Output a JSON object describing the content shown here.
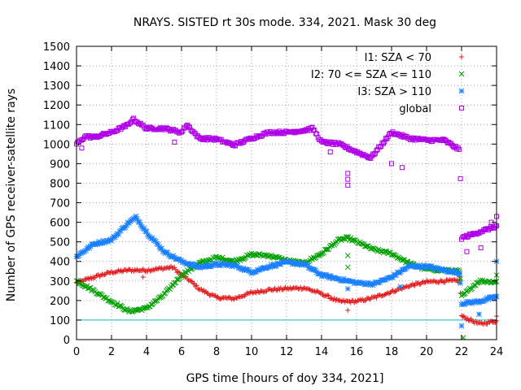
{
  "chart_data": {
    "type": "scatter",
    "title": "NRAYS. SISTED rt 30s mode. 334, 2021. Mask 30 deg",
    "xlabel": "GPS time [hours of doy 334, 2021]",
    "ylabel": "Number of GPS receiver-satellite rays",
    "xlim": [
      0,
      24
    ],
    "ylim": [
      0,
      1500
    ],
    "x_ticks": [
      "0",
      "2",
      "4",
      "6",
      "8",
      "10",
      "12",
      "14",
      "16",
      "18",
      "20",
      "22",
      "24"
    ],
    "y_ticks": [
      "0",
      "100",
      "200",
      "300",
      "400",
      "500",
      "600",
      "700",
      "800",
      "900",
      "1000",
      "1100",
      "1200",
      "1300",
      "1400",
      "1500"
    ],
    "grid": true,
    "legend_position": "top-right",
    "reference_line": {
      "y": 100,
      "color": "#00c8c8"
    },
    "series": [
      {
        "name": "I1: SZA < 70",
        "marker": "+",
        "color": "#e41a1c",
        "x": [
          0,
          1,
          2,
          3,
          4,
          5,
          5.5,
          6,
          6.5,
          7,
          8,
          9,
          10,
          11,
          12,
          13,
          14,
          15,
          16,
          17,
          18,
          19,
          20,
          21,
          21.9,
          22,
          23,
          24
        ],
        "y": [
          290,
          320,
          345,
          355,
          355,
          365,
          370,
          330,
          300,
          260,
          215,
          210,
          240,
          255,
          260,
          265,
          235,
          195,
          195,
          215,
          245,
          275,
          295,
          300,
          300,
          120,
          80,
          95
        ]
      },
      {
        "name": "I2: 70 <= SZA <= 110",
        "marker": "x",
        "color": "#00a000",
        "x": [
          0,
          1,
          2,
          3,
          4,
          5,
          6,
          7,
          8,
          9,
          10,
          11,
          12,
          13,
          14,
          15,
          15.5,
          16,
          17,
          18,
          19,
          20,
          21,
          21.9,
          22,
          23,
          24
        ],
        "y": [
          300,
          250,
          195,
          145,
          160,
          230,
          330,
          390,
          420,
          400,
          435,
          430,
          405,
          390,
          440,
          510,
          520,
          500,
          460,
          440,
          390,
          360,
          355,
          350,
          220,
          300,
          295
        ]
      },
      {
        "name": "I3: SZA > 110",
        "marker": "*",
        "color": "#1a80ff",
        "x": [
          0,
          1,
          2,
          3,
          3.4,
          4,
          5,
          6,
          7,
          8,
          9,
          10,
          11,
          12,
          13,
          14,
          15,
          16,
          17,
          18,
          19,
          20,
          21,
          21.9,
          22,
          23,
          24
        ],
        "y": [
          425,
          490,
          510,
          600,
          625,
          550,
          450,
          400,
          370,
          385,
          380,
          345,
          375,
          395,
          385,
          330,
          310,
          290,
          285,
          320,
          375,
          375,
          355,
          340,
          185,
          195,
          220
        ]
      },
      {
        "name": "global",
        "marker": "square",
        "color": "#b000e8",
        "x": [
          0,
          0.5,
          1,
          2,
          3,
          3.2,
          4,
          5,
          6,
          6.3,
          7,
          8,
          9,
          10,
          11,
          12,
          13,
          13.5,
          14,
          15,
          16,
          16.8,
          17,
          18,
          19,
          20,
          21,
          21.9,
          22,
          23,
          24
        ],
        "y": [
          1000,
          1040,
          1035,
          1060,
          1100,
          1130,
          1080,
          1080,
          1060,
          1100,
          1030,
          1025,
          995,
          1030,
          1060,
          1060,
          1070,
          1080,
          1010,
          1000,
          960,
          930,
          950,
          1060,
          1030,
          1020,
          1020,
          970,
          520,
          550,
          580
        ]
      }
    ],
    "outliers": {
      "global": [
        [
          0.3,
          980
        ],
        [
          5.6,
          1010
        ],
        [
          8.9,
          1000
        ],
        [
          14.5,
          960
        ],
        [
          15.5,
          850
        ],
        [
          15.5,
          820
        ],
        [
          15.5,
          790
        ],
        [
          18.0,
          900
        ],
        [
          18.6,
          880
        ],
        [
          22.3,
          450
        ],
        [
          23.1,
          470
        ],
        [
          23.7,
          600
        ],
        [
          24,
          630
        ]
      ],
      "I1: SZA < 70": [
        [
          3.8,
          320
        ],
        [
          15.5,
          150
        ],
        [
          21.9,
          320
        ],
        [
          24,
          120
        ]
      ],
      "I2: 70 <= SZA <= 110": [
        [
          15.5,
          430
        ],
        [
          15.5,
          370
        ],
        [
          21.9,
          300
        ],
        [
          22.1,
          10
        ],
        [
          24,
          330
        ]
      ],
      "I3: SZA > 110": [
        [
          15.5,
          260
        ],
        [
          18.5,
          270
        ],
        [
          21.9,
          340
        ],
        [
          22.0,
          70
        ],
        [
          23.0,
          130
        ],
        [
          24,
          400
        ]
      ]
    }
  }
}
